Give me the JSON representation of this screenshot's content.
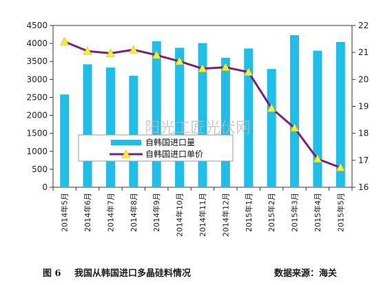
{
  "chart_data": {
    "type": "bar",
    "categories": [
      "2014年5月",
      "2014年6月",
      "2014年7月",
      "2014年8月",
      "2014年9月",
      "2014年10月",
      "2014年11月",
      "2014年12月",
      "2015年1月",
      "2015年2月",
      "2015年3月",
      "2015年4月",
      "2015年5月"
    ],
    "series": [
      {
        "name": "自韩国进口量",
        "type": "bar",
        "axis": "left",
        "color": "#1fbde8",
        "values": [
          2580,
          3420,
          3330,
          3100,
          4060,
          3880,
          4010,
          3600,
          3860,
          3290,
          4230,
          3800,
          4040
        ]
      },
      {
        "name": "自韩国进口单价",
        "type": "line",
        "axis": "right",
        "color": "#7b1f7a",
        "marker_color": "#f5ef3a",
        "values": [
          21.4,
          21.05,
          20.97,
          21.1,
          20.9,
          20.67,
          20.4,
          20.45,
          20.27,
          18.93,
          18.2,
          17.05,
          16.73
        ]
      }
    ],
    "y_left": {
      "min": 0,
      "max": 4500,
      "ticks": [
        0,
        500,
        1000,
        1500,
        2000,
        2500,
        3000,
        3500,
        4000,
        4500
      ]
    },
    "y_right": {
      "min": 16,
      "max": 22,
      "ticks": [
        16,
        17,
        18,
        19,
        20,
        21,
        22
      ]
    },
    "grid": false,
    "legend": "center-left"
  },
  "watermark": "阳光工匠光伏网",
  "caption": {
    "figure_no": "图 6",
    "title": "我国从韩国进口多晶硅料情况",
    "source": "数据来源：海关"
  }
}
